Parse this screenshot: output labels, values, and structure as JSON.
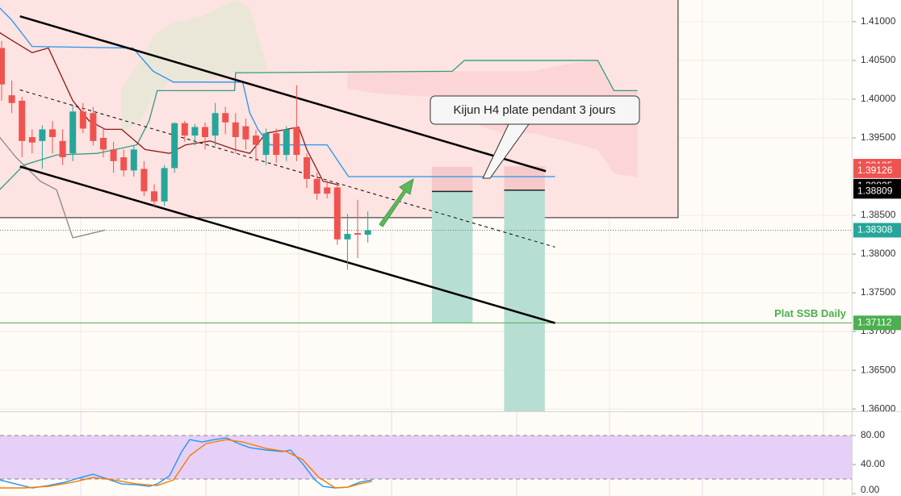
{
  "chart_data": {
    "type": "candlestick",
    "ylim": [
      1.3597,
      1.4128
    ],
    "yticks": [
      {
        "value": 1.41,
        "label": "1.41000"
      },
      {
        "value": 1.405,
        "label": "1.40500"
      },
      {
        "value": 1.4,
        "label": "1.40000"
      },
      {
        "value": 1.395,
        "label": "1.39500"
      },
      {
        "value": 1.385,
        "label": "1.38500"
      },
      {
        "value": 1.38,
        "label": "1.38000"
      },
      {
        "value": 1.375,
        "label": "1.37500"
      },
      {
        "value": 1.37,
        "label": "1.37000"
      },
      {
        "value": 1.365,
        "label": "1.36500"
      },
      {
        "value": 1.36,
        "label": "1.36000"
      }
    ],
    "grid": true,
    "colors": {
      "up": "#26a69a",
      "down": "#ef5350"
    },
    "open": [
      1.4066,
      1.4005,
      1.3998,
      1.3951,
      1.3946,
      1.3961,
      1.3946,
      1.393,
      1.3984,
      1.3982,
      1.395,
      1.3935,
      1.3925,
      1.3908,
      1.391,
      1.3881,
      1.3868,
      1.3911,
      1.3969,
      1.3953,
      1.3964,
      1.3953,
      1.3982,
      1.397,
      1.3965,
      1.3953,
      1.3928,
      1.3956,
      1.3928,
      1.3964,
      1.3925,
      1.3897,
      1.3886,
      1.3886,
      1.3819,
      1.3827,
      1.3825
    ],
    "high": [
      1.4075,
      1.4024,
      1.4003,
      1.3961,
      1.3966,
      1.3972,
      1.3961,
      1.3993,
      1.3995,
      1.399,
      1.3962,
      1.3945,
      1.3935,
      1.394,
      1.392,
      1.389,
      1.3915,
      1.397,
      1.3972,
      1.3968,
      1.397,
      1.3995,
      1.399,
      1.3982,
      1.3975,
      1.396,
      1.3962,
      1.3962,
      1.3965,
      1.4018,
      1.393,
      1.3905,
      1.3895,
      1.389,
      1.3852,
      1.387,
      1.3855
    ],
    "low": [
      1.3998,
      1.3982,
      1.3925,
      1.393,
      1.391,
      1.393,
      1.3915,
      1.392,
      1.3956,
      1.394,
      1.3925,
      1.3905,
      1.39,
      1.39,
      1.3875,
      1.3862,
      1.3862,
      1.3905,
      1.3945,
      1.394,
      1.3935,
      1.394,
      1.3955,
      1.393,
      1.3935,
      1.392,
      1.3915,
      1.3918,
      1.392,
      1.392,
      1.3885,
      1.387,
      1.3872,
      1.3812,
      1.378,
      1.3795,
      1.3815
    ],
    "close": [
      1.4019,
      1.3995,
      1.3946,
      1.3944,
      1.3961,
      1.3951,
      1.3925,
      1.3984,
      1.3962,
      1.3946,
      1.3935,
      1.392,
      1.3908,
      1.3935,
      1.3881,
      1.3868,
      1.3911,
      1.3969,
      1.3953,
      1.3964,
      1.3951,
      1.3982,
      1.397,
      1.3951,
      1.3948,
      1.3941,
      1.3956,
      1.3928,
      1.3961,
      1.3928,
      1.3897,
      1.3878,
      1.3878,
      1.3819,
      1.3826,
      1.3825,
      1.38308
    ],
    "clouds": [
      {
        "color": "#e6e6d6",
        "x": [
          11.8,
          13.7,
          14.9,
          16.5,
          19.7,
          22.9,
          24.4,
          26.0
        ],
        "top": [
          1.4014,
          1.405,
          1.4081,
          1.4097,
          1.4107,
          1.4128,
          1.4118,
          1.4045
        ],
        "bottom": [
          1.3956,
          1.3972,
          1.4003,
          1.4022,
          1.4022,
          1.4034,
          1.4036,
          1.4036
        ]
      },
      {
        "color": "#fbd3d3",
        "x": [
          34.0,
          36.4,
          39.5,
          42.7,
          45.9,
          49.1,
          52.2,
          55.4,
          58.6,
          60.2,
          62.5
        ],
        "top": [
          1.4036,
          1.4036,
          1.4036,
          1.4036,
          1.4036,
          1.4036,
          1.4036,
          1.4045,
          1.405,
          1.4011,
          1.4011
        ],
        "bottom": [
          1.4014,
          1.4008,
          1.4005,
          1.4003,
          1.3972,
          1.3956,
          1.3956,
          1.3946,
          1.3935,
          1.3904,
          1.3899
        ]
      }
    ],
    "overlays": [
      {
        "color": "#2e9e7e",
        "x": [
          -0.2,
          2.2,
          5.4,
          9.4,
          13.3,
          14.5,
          15.3,
          22.9,
          23.0,
          44.3,
          45.5,
          58.6,
          60.2,
          62.5
        ],
        "values": [
          1.3883,
          1.3915,
          1.3928,
          1.393,
          1.3941,
          1.3972,
          1.4011,
          1.4011,
          1.4034,
          1.4036,
          1.405,
          1.405,
          1.4011,
          1.4011
        ]
      },
      {
        "color": "#2196f3",
        "x": [
          -0.2,
          1.0,
          3.0,
          12.9,
          14.9,
          16.9,
          23.7,
          24.4,
          25.2,
          26.4,
          32.0,
          34.1,
          54.4
        ],
        "values": [
          1.4118,
          1.4102,
          1.4068,
          1.4066,
          1.4036,
          1.4022,
          1.4022,
          1.3982,
          1.3961,
          1.3941,
          1.3941,
          1.39,
          1.39
        ]
      },
      {
        "color": "#8b1a1a",
        "x": [
          -0.2,
          1.0,
          3.0,
          4.6,
          7.0,
          8.6,
          10.2,
          11.8,
          14.1,
          16.5,
          18.1,
          20.5,
          22.9,
          24.4,
          26.0,
          28.0,
          29.2,
          30.0,
          31.6,
          33.2
        ],
        "values": [
          1.4086,
          1.4076,
          1.406,
          1.4066,
          1.3998,
          1.3972,
          1.3961,
          1.3961,
          1.3935,
          1.393,
          1.3941,
          1.3946,
          1.3935,
          1.393,
          1.3956,
          1.3961,
          1.3964,
          1.3935,
          1.3894,
          1.3889
        ]
      },
      {
        "color": "#888888",
        "x": [
          -0.2,
          1.4,
          3.8,
          5.4,
          7.0,
          8.6,
          10.2
        ],
        "values": [
          1.3951,
          1.3925,
          1.3894,
          1.3883,
          1.3821,
          1.3826,
          1.3831
        ]
      }
    ],
    "trendlines": [
      {
        "x": [
          1.8,
          53.5
        ],
        "values": [
          1.4107,
          1.3907
        ],
        "dashed": false
      },
      {
        "x": [
          1.8,
          54.4
        ],
        "values": [
          1.3913,
          1.3711
        ],
        "dashed": false
      },
      {
        "x": [
          1.8,
          54.4
        ],
        "values": [
          1.4012,
          1.3809
        ],
        "dashed": true
      }
    ],
    "zone": {
      "x": [
        -1,
        66.5
      ],
      "top": 1.4135,
      "bottom": 1.3847,
      "color": "#fde3e1"
    },
    "positions": [
      {
        "x": [
          42.3,
          46.3
        ],
        "stop": 1.39126,
        "entry": 1.38809,
        "target": 1.3711
      },
      {
        "x": [
          49.4,
          53.4
        ],
        "stop": 1.39135,
        "entry": 1.38825,
        "target": 1.3597
      }
    ],
    "position_colors": {
      "stop": "#f6caca",
      "target": "#b7ded3",
      "stop_tag": "#ef5350",
      "entry_tag": "#000000"
    },
    "last_price_color": "#26a69a",
    "hlines": [
      {
        "label": "Plat SSB Daily",
        "value": 1.37112,
        "color": "#4caf50"
      }
    ],
    "annotation": {
      "text": "Kijun H4 plate pendant 3 jours"
    },
    "indicator": {
      "ylim": [
        -3.3,
        113.3
      ],
      "yticks": [
        {
          "value": 80,
          "label": "80.00"
        },
        {
          "value": 40,
          "label": "40.00"
        },
        {
          "value": 0,
          "label": "0.00"
        }
      ],
      "band": [
        20,
        80
      ],
      "band_color": "#e6d0f7",
      "series": [
        {
          "color": "#2196f3",
          "x": [
            -0.2,
            1.4,
            3.0,
            4.6,
            6.2,
            7.8,
            9.0,
            10.2,
            11.8,
            13.3,
            14.5,
            15.3,
            16.5,
            17.7,
            18.5,
            19.7,
            20.9,
            22.1,
            23.3,
            24.4,
            26.0,
            27.6,
            28.4,
            29.6,
            30.8,
            31.6,
            32.8,
            34.0,
            35.2,
            36.4
          ],
          "values": [
            18.9,
            13.3,
            7.8,
            11.1,
            15.6,
            22.2,
            26.7,
            21.1,
            13.3,
            12.2,
            10,
            13.3,
            24.4,
            57.8,
            74.4,
            71.1,
            74.4,
            76.7,
            68.9,
            63.3,
            60,
            57.8,
            60,
            41.1,
            18.9,
            10,
            7.8,
            8.9,
            15.6,
            18.9
          ]
        },
        {
          "color": "#f57c00",
          "x": [
            -0.2,
            2.2,
            4.6,
            7.0,
            9.0,
            11.0,
            13.3,
            15.3,
            16.9,
            18.5,
            20.1,
            22.1,
            23.7,
            26.0,
            28.0,
            29.6,
            31.2,
            32.8,
            34.0,
            35.2,
            36.4
          ],
          "values": [
            7.8,
            7.8,
            10,
            15.6,
            22.2,
            18.9,
            13.3,
            11.1,
            18.9,
            52.2,
            68.9,
            74.4,
            71.1,
            62.2,
            57.8,
            46.7,
            22.2,
            7.8,
            8.9,
            13.3,
            16.7
          ]
        }
      ]
    }
  }
}
